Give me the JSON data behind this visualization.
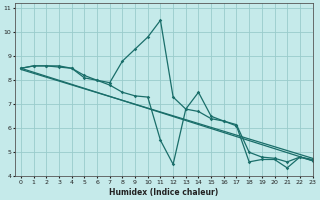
{
  "xlabel": "Humidex (Indice chaleur)",
  "xlim": [
    -0.5,
    23
  ],
  "ylim": [
    4,
    11.2
  ],
  "yticks": [
    4,
    5,
    6,
    7,
    8,
    9,
    10,
    11
  ],
  "xticks": [
    0,
    1,
    2,
    3,
    4,
    5,
    6,
    7,
    8,
    9,
    10,
    11,
    12,
    13,
    14,
    15,
    16,
    17,
    18,
    19,
    20,
    21,
    22,
    23
  ],
  "background_color": "#c5eaea",
  "grid_color": "#99cccc",
  "line_color": "#1a6e6a",
  "line1_x": [
    0,
    1,
    2,
    3,
    4,
    5,
    6,
    7,
    8,
    9,
    10,
    11,
    12,
    13,
    14,
    15,
    16,
    17,
    18,
    19,
    20,
    21,
    22,
    23
  ],
  "line1_y": [
    8.5,
    8.6,
    8.6,
    8.6,
    8.5,
    8.1,
    8.0,
    7.9,
    8.8,
    9.3,
    9.8,
    10.5,
    7.3,
    6.8,
    6.7,
    6.4,
    6.3,
    6.15,
    5.0,
    4.8,
    4.75,
    4.6,
    4.8,
    4.7
  ],
  "line2_x": [
    0,
    1,
    2,
    3,
    4,
    5,
    6,
    7,
    8,
    9,
    10,
    11,
    12,
    13,
    14,
    15,
    16,
    17,
    18,
    19,
    20,
    21,
    22,
    23
  ],
  "line2_y": [
    8.5,
    8.6,
    8.6,
    8.55,
    8.5,
    8.2,
    8.0,
    7.8,
    7.5,
    7.35,
    7.3,
    5.5,
    4.5,
    6.8,
    7.5,
    6.5,
    6.3,
    6.1,
    4.6,
    4.7,
    4.7,
    4.35,
    4.8,
    4.65
  ],
  "line3_x": [
    0,
    23
  ],
  "line3_y": [
    8.5,
    4.65
  ],
  "line4_x": [
    0,
    23
  ],
  "line4_y": [
    8.45,
    4.75
  ]
}
